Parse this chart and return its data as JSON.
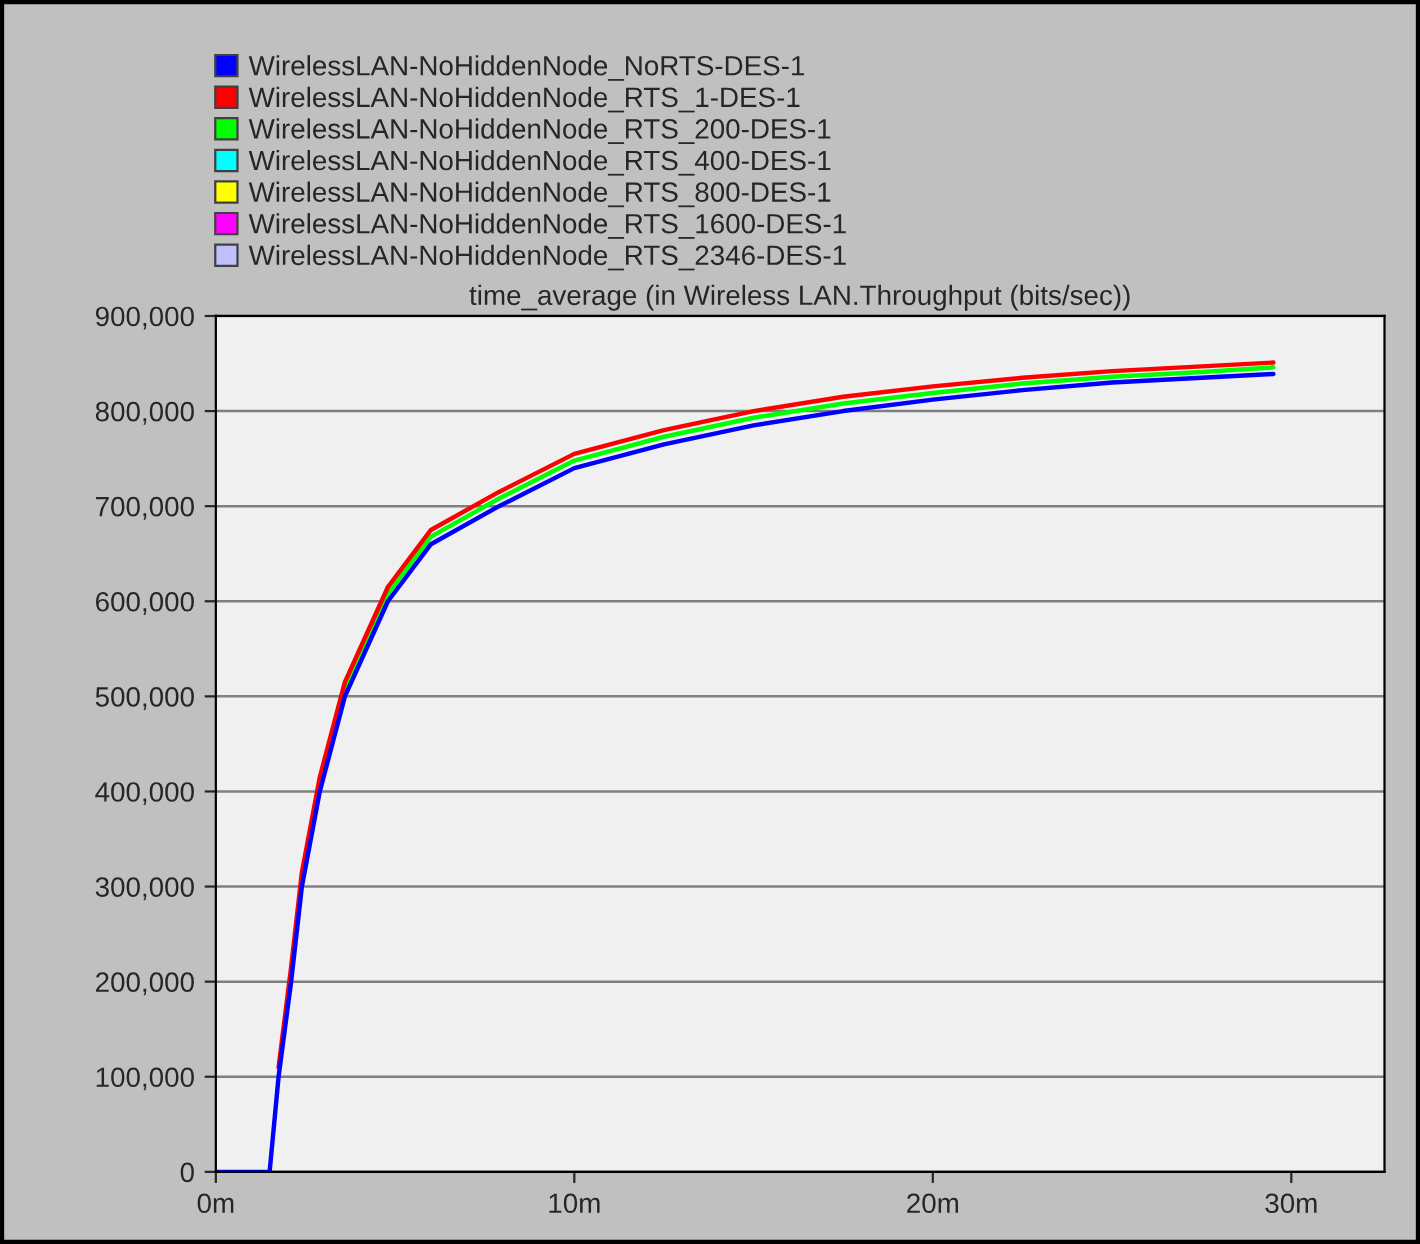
{
  "chart_data": {
    "type": "line",
    "title": "time_average (in Wireless LAN.Throughput (bits/sec))",
    "x": [
      0,
      1.4,
      1.5,
      1.75,
      2.1,
      2.4,
      2.9,
      3.6,
      4.8,
      6,
      7.9,
      10,
      12.5,
      15,
      17.5,
      20,
      22.5,
      25,
      27.5,
      29.5
    ],
    "series": [
      {
        "name": "WirelessLAN-NoHiddenNode_NoRTS-DES-1",
        "color": "#0000ff",
        "values": [
          0,
          0,
          0,
          100000,
          200000,
          300000,
          400000,
          500000,
          600000,
          660000,
          700000,
          740000,
          765000,
          785000,
          800000,
          812000,
          822000,
          830000,
          835000,
          839000
        ]
      },
      {
        "name": "WirelessLAN-NoHiddenNode_RTS_1-DES-1",
        "color": "#ff0000",
        "values": [
          null,
          null,
          null,
          110000,
          215000,
          315000,
          415000,
          515000,
          615000,
          675000,
          715000,
          755000,
          780000,
          800000,
          815000,
          826000,
          835000,
          842000,
          847000,
          851000
        ]
      },
      {
        "name": "WirelessLAN-NoHiddenNode_RTS_200-DES-1",
        "color": "#00ff00",
        "values": [
          null,
          null,
          null,
          null,
          null,
          null,
          null,
          508000,
          608000,
          668000,
          708000,
          748000,
          773000,
          793000,
          808000,
          819000,
          829000,
          836000,
          841000,
          846000
        ]
      },
      {
        "name": "WirelessLAN-NoHiddenNode_RTS_400-DES-1",
        "color": "#00ffff",
        "values": [
          null,
          null,
          null,
          null,
          null,
          null,
          null,
          null,
          null,
          null,
          null,
          null,
          null,
          null,
          null,
          null,
          null,
          null,
          null,
          null
        ]
      },
      {
        "name": "WirelessLAN-NoHiddenNode_RTS_800-DES-1",
        "color": "#ffff00",
        "values": [
          null,
          null,
          null,
          null,
          null,
          null,
          null,
          null,
          null,
          null,
          null,
          null,
          null,
          null,
          null,
          null,
          null,
          null,
          null,
          null
        ]
      },
      {
        "name": "WirelessLAN-NoHiddenNode_RTS_1600-DES-1",
        "color": "#ff00ff",
        "values": [
          null,
          null,
          null,
          null,
          null,
          null,
          null,
          null,
          null,
          null,
          null,
          null,
          null,
          null,
          null,
          null,
          null,
          null,
          null,
          null
        ]
      },
      {
        "name": "WirelessLAN-NoHiddenNode_RTS_2346-DES-1",
        "color": "#c0c0ff",
        "values": [
          null,
          null,
          null,
          null,
          null,
          null,
          null,
          null,
          null,
          null,
          null,
          null,
          null,
          null,
          null,
          null,
          null,
          null,
          null,
          null
        ]
      }
    ],
    "xlim": [
      0,
      32.6
    ],
    "xticks": [
      {
        "value": 0,
        "label": "0m"
      },
      {
        "value": 10,
        "label": "10m"
      },
      {
        "value": 20,
        "label": "20m"
      },
      {
        "value": 30,
        "label": "30m"
      }
    ],
    "ylim": [
      0,
      900000
    ],
    "yticks": [
      {
        "value": 0,
        "label": "0"
      },
      {
        "value": 100000,
        "label": "100,000"
      },
      {
        "value": 200000,
        "label": "200,000"
      },
      {
        "value": 300000,
        "label": "300,000"
      },
      {
        "value": 400000,
        "label": "400,000"
      },
      {
        "value": 500000,
        "label": "500,000"
      },
      {
        "value": 600000,
        "label": "600,000"
      },
      {
        "value": 700000,
        "label": "700,000"
      },
      {
        "value": 800000,
        "label": "800,000"
      },
      {
        "value": 900000,
        "label": "900,000"
      }
    ],
    "grid": "y",
    "legend": "top left",
    "line_style": "solid"
  }
}
